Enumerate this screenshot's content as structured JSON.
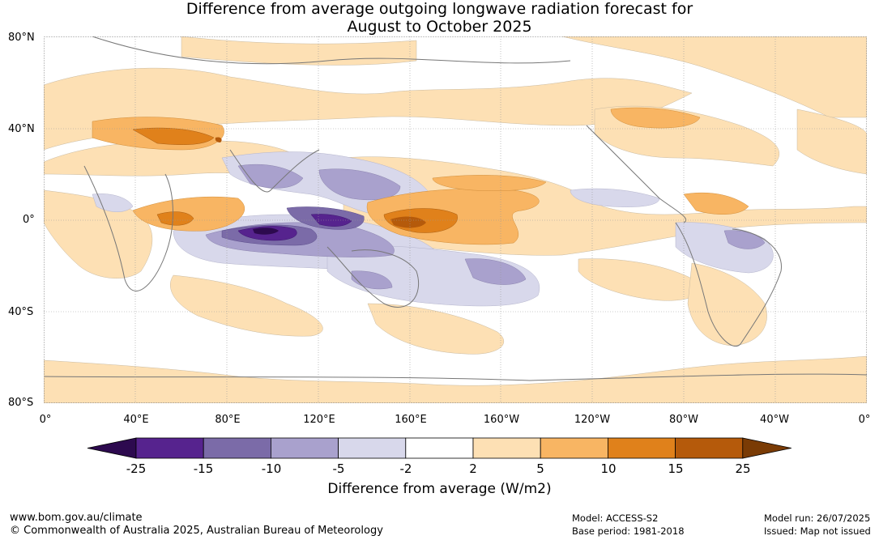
{
  "title_line1": "Difference from average outgoing longwave radiation forecast for",
  "title_line2": "August to October 2025",
  "lat_labels": [
    "80°N",
    "40°N",
    "0°",
    "40°S",
    "80°S"
  ],
  "lon_labels": [
    "0°",
    "40°E",
    "80°E",
    "120°E",
    "160°E",
    "160°W",
    "120°W",
    "80°W",
    "40°W",
    "0°"
  ],
  "colorbar": {
    "title": "Difference from average (W/m2)",
    "ticks": [
      "-25",
      "-15",
      "-10",
      "-5",
      "-2",
      "2",
      "5",
      "10",
      "15",
      "25"
    ],
    "colors": [
      "#2d0a4f",
      "#56238e",
      "#7b6ba8",
      "#a9a1cd",
      "#d8d8eb",
      "#ffffff",
      "#fde0b4",
      "#f8b563",
      "#e0811b",
      "#b55a0b",
      "#7a3b05"
    ]
  },
  "footer": {
    "url": "www.bom.gov.au/climate",
    "copyright": "© Commonwealth of Australia 2025, Australian Bureau of Meteorology",
    "model": "Model: ACCESS-S2",
    "base_period": "Base period: 1981-2018",
    "model_run": "Model run: 26/07/2025",
    "issued": "Issued: Map not issued"
  }
}
